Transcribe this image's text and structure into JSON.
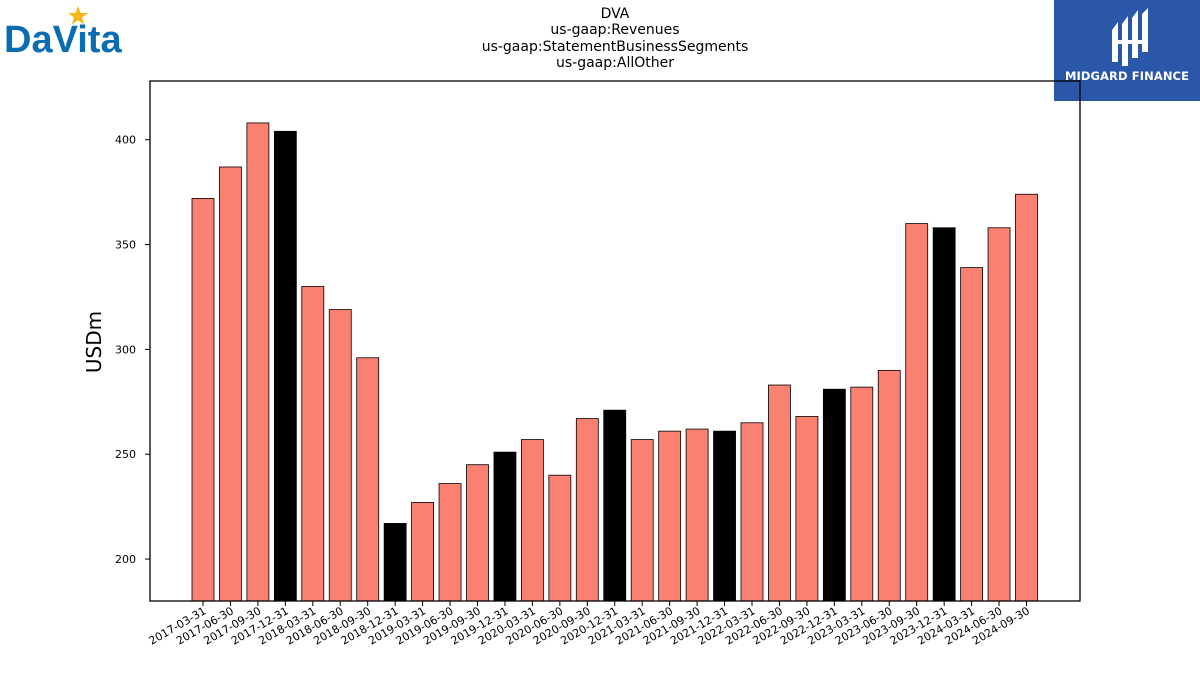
{
  "header": {
    "title_lines": [
      "DVA",
      "us-gaap:Revenues",
      "us-gaap:StatementBusinessSegments",
      "us-gaap:AllOther"
    ]
  },
  "logos": {
    "left": {
      "name": "DaVita",
      "text": "DaVita",
      "color": "#0a6db4",
      "star_color": "#f5b61c"
    },
    "right": {
      "name": "Midgard Finance",
      "text": "MIDGARD FINANCE",
      "background": "#2b57a8"
    }
  },
  "chart_data": {
    "type": "bar",
    "title": "DVA\nus-gaap:Revenues\nus-gaap:StatementBusinessSegments\nus-gaap:AllOther",
    "xlabel": "",
    "ylabel": "USDm",
    "ylim": [
      180,
      428
    ],
    "yticks": [
      200,
      250,
      300,
      350,
      400
    ],
    "grid": false,
    "colors": {
      "quarter": "#fa8072",
      "year_end": "#000000",
      "edge": "#000000"
    },
    "categories": [
      "2017-03-31",
      "2017-06-30",
      "2017-09-30",
      "2017-12-31",
      "2018-03-31",
      "2018-06-30",
      "2018-09-30",
      "2018-12-31",
      "2019-03-31",
      "2019-06-30",
      "2019-09-30",
      "2019-12-31",
      "2020-03-31",
      "2020-06-30",
      "2020-09-30",
      "2020-12-31",
      "2021-03-31",
      "2021-06-30",
      "2021-09-30",
      "2021-12-31",
      "2022-03-31",
      "2022-06-30",
      "2022-09-30",
      "2022-12-31",
      "2023-03-31",
      "2023-06-30",
      "2023-09-30",
      "2023-12-31",
      "2024-03-31",
      "2024-06-30",
      "2024-09-30"
    ],
    "values": [
      372,
      387,
      408,
      404,
      330,
      319,
      296,
      217,
      227,
      236,
      245,
      251,
      257,
      240,
      267,
      271,
      257,
      261,
      262,
      261,
      265,
      283,
      268,
      281,
      282,
      290,
      360,
      358,
      339,
      358,
      374
    ]
  }
}
